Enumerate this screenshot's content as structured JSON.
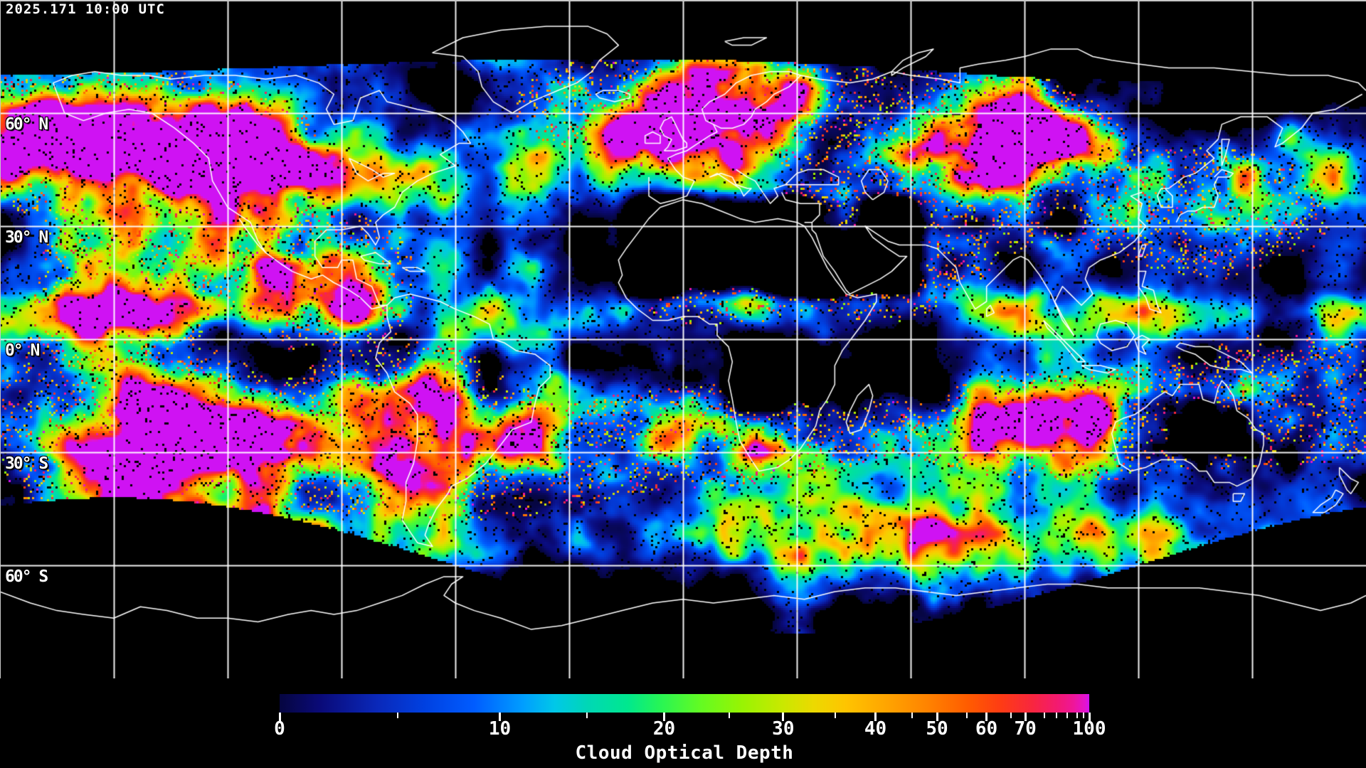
{
  "header": {
    "timestamp": "2025.171 10:00 UTC"
  },
  "map": {
    "background_color": "#000000",
    "coastline_color": "#ffffff",
    "gridline_color": "#ffffff",
    "frame_color": "#c8c8c8",
    "grid_longitudes_deg": [
      -150,
      -120,
      -90,
      -60,
      -30,
      0,
      30,
      60,
      90,
      120,
      150
    ],
    "grid_latitudes_deg": [
      60,
      30,
      0,
      -30,
      -60
    ],
    "latitude_labels": [
      {
        "label": "60° N",
        "lat": 60
      },
      {
        "label": "30° N",
        "lat": 30
      },
      {
        "label": "0° N",
        "lat": 0
      },
      {
        "label": "30° S",
        "lat": -30
      },
      {
        "label": "60° S",
        "lat": -60
      }
    ]
  },
  "colorbar": {
    "title": "Cloud Optical Depth",
    "units": "",
    "major_ticks": [
      {
        "value": "0",
        "fraction": 0.0
      },
      {
        "value": "10",
        "fraction": 0.272
      },
      {
        "value": "20",
        "fraction": 0.475
      },
      {
        "value": "30",
        "fraction": 0.622
      },
      {
        "value": "40",
        "fraction": 0.736
      },
      {
        "value": "50",
        "fraction": 0.812
      },
      {
        "value": "60",
        "fraction": 0.873
      },
      {
        "value": "70",
        "fraction": 0.921
      },
      {
        "value": "100",
        "fraction": 1.0
      }
    ],
    "minor_ticks": [
      {
        "value": 5,
        "fraction": 0.146
      },
      {
        "value": 15,
        "fraction": 0.38
      },
      {
        "value": 25,
        "fraction": 0.555
      },
      {
        "value": 35,
        "fraction": 0.686
      },
      {
        "value": 45,
        "fraction": 0.781
      },
      {
        "value": 55,
        "fraction": 0.849
      },
      {
        "value": 65,
        "fraction": 0.903
      },
      {
        "value": 75,
        "fraction": 0.945
      },
      {
        "value": 80,
        "fraction": 0.96
      },
      {
        "value": 85,
        "fraction": 0.973
      },
      {
        "value": 90,
        "fraction": 0.985
      },
      {
        "value": 95,
        "fraction": 0.993
      }
    ],
    "gradient_stops": [
      {
        "fraction": 0.0,
        "color": "#060640"
      },
      {
        "fraction": 0.05,
        "color": "#0a0a78"
      },
      {
        "fraction": 0.12,
        "color": "#0a28b9"
      },
      {
        "fraction": 0.18,
        "color": "#0041e1"
      },
      {
        "fraction": 0.24,
        "color": "#005cff"
      },
      {
        "fraction": 0.3,
        "color": "#009dff"
      },
      {
        "fraction": 0.34,
        "color": "#00c8e8"
      },
      {
        "fraction": 0.38,
        "color": "#00d7b6"
      },
      {
        "fraction": 0.43,
        "color": "#00e88e"
      },
      {
        "fraction": 0.47,
        "color": "#27f555"
      },
      {
        "fraction": 0.52,
        "color": "#63fb22"
      },
      {
        "fraction": 0.57,
        "color": "#97f403"
      },
      {
        "fraction": 0.62,
        "color": "#c8e900"
      },
      {
        "fraction": 0.66,
        "color": "#ecd900"
      },
      {
        "fraction": 0.7,
        "color": "#ffc400"
      },
      {
        "fraction": 0.75,
        "color": "#ffa400"
      },
      {
        "fraction": 0.8,
        "color": "#ff8300"
      },
      {
        "fraction": 0.85,
        "color": "#ff5c00"
      },
      {
        "fraction": 0.89,
        "color": "#fe3c13"
      },
      {
        "fraction": 0.93,
        "color": "#f8263f"
      },
      {
        "fraction": 0.96,
        "color": "#f31a6f"
      },
      {
        "fraction": 0.98,
        "color": "#ef1697"
      },
      {
        "fraction": 0.995,
        "color": "#e414cf"
      },
      {
        "fraction": 1.0,
        "color": "#cf12f3"
      }
    ]
  }
}
